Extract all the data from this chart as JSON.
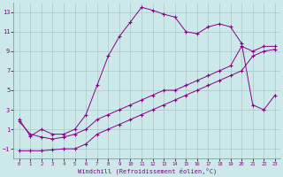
{
  "xlabel": "Windchill (Refroidissement éolien,°C)",
  "bg_color": "#cde8e8",
  "grid_color": "#aac8c8",
  "line_color": "#880088",
  "xlim": [
    -0.5,
    23.5
  ],
  "ylim": [
    -2,
    14
  ],
  "xticks": [
    0,
    1,
    2,
    3,
    4,
    5,
    6,
    7,
    8,
    9,
    10,
    11,
    12,
    13,
    14,
    15,
    16,
    17,
    18,
    19,
    20,
    21,
    22,
    23
  ],
  "yticks": [
    -1,
    1,
    3,
    5,
    7,
    9,
    11,
    13
  ],
  "line1_x": [
    0,
    1,
    2,
    3,
    4,
    5,
    6,
    7,
    8,
    9,
    10,
    11,
    12,
    13,
    14,
    15,
    16,
    17,
    18,
    19,
    20,
    21,
    22,
    23
  ],
  "line1_y": [
    2,
    0.3,
    1.0,
    0.5,
    0.5,
    1.0,
    2.5,
    5.5,
    8.5,
    10.5,
    12.0,
    13.5,
    13.2,
    12.8,
    12.5,
    11.0,
    10.8,
    11.5,
    11.8,
    11.5,
    9.8,
    3.5,
    3.0,
    4.5
  ],
  "line2_x": [
    0,
    1,
    2,
    3,
    4,
    5,
    6,
    7,
    8,
    9,
    10,
    11,
    12,
    13,
    14,
    15,
    16,
    17,
    18,
    19,
    20,
    21,
    22,
    23
  ],
  "line2_y": [
    -1.2,
    -1.2,
    -1.2,
    -1.1,
    -1.0,
    -1.0,
    -0.5,
    0.5,
    1.0,
    1.5,
    2.0,
    2.5,
    3.0,
    3.5,
    4.0,
    4.5,
    5.0,
    5.5,
    6.0,
    6.5,
    7.0,
    8.5,
    9.0,
    9.2
  ],
  "line3_x": [
    0,
    1,
    2,
    3,
    4,
    5,
    6,
    7,
    8,
    9,
    10,
    11,
    12,
    13,
    14,
    15,
    16,
    17,
    18,
    19,
    20,
    21,
    22,
    23
  ],
  "line3_y": [
    1.8,
    0.5,
    0.2,
    0.0,
    0.2,
    0.5,
    1.0,
    2.0,
    2.5,
    3.0,
    3.5,
    4.0,
    4.5,
    5.0,
    5.0,
    5.5,
    6.0,
    6.5,
    7.0,
    7.5,
    9.5,
    9.0,
    9.5,
    9.5
  ]
}
